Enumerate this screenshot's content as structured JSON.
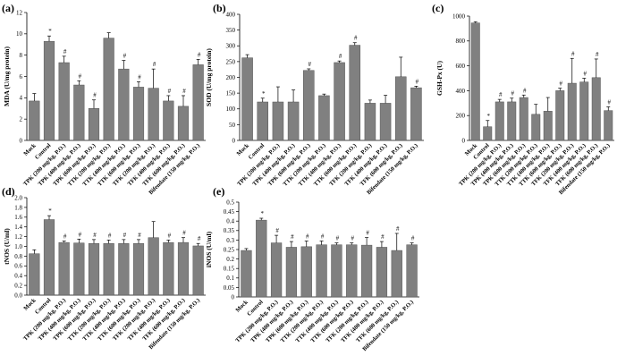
{
  "categories": [
    "Mock",
    "Control",
    "TPK (200 mg/kg, P.O.)",
    "TPK (400 mg/kg, P.O.)",
    "TPK (600 mg/kg, P.O.)",
    "TTK (200 mg/kg, P.O.)",
    "TTK (400 mg/kg, P.O.)",
    "TTK (600 mg/kg, P.O.)",
    "TFK (200 mg/kg, P.O.)",
    "TFK (400 mg/kg, P.O.)",
    "TFK (600 mg/kg, P.O.)",
    "Bifendate (150 mg/kg, P.O.)"
  ],
  "colors": {
    "bar": "#808080",
    "axis": "#000000",
    "error": "#000000"
  },
  "chart_data": [
    {
      "type": "bar",
      "panel_label": "(a)",
      "ylabel": "MDA (U/mg protein)",
      "ylim": [
        0,
        12
      ],
      "yticks": [
        0,
        2,
        4,
        6,
        8,
        10,
        12
      ],
      "tick_decimals": 0,
      "values": [
        3.7,
        9.3,
        7.3,
        5.2,
        3.0,
        9.6,
        6.7,
        5.0,
        4.9,
        3.7,
        3.2,
        7.1
      ],
      "errors": [
        0.7,
        0.5,
        0.6,
        0.4,
        0.8,
        0.5,
        0.8,
        0.5,
        1.8,
        0.5,
        1.0,
        0.5
      ],
      "marks": [
        "",
        "*",
        "#",
        "#",
        "#",
        "",
        "#",
        "#",
        "#",
        "#",
        "#",
        "#"
      ]
    },
    {
      "type": "bar",
      "panel_label": "(b)",
      "ylabel": "SOD (U/mg protein)",
      "ylim": [
        0,
        400
      ],
      "yticks": [
        0,
        50,
        100,
        150,
        200,
        250,
        300,
        350,
        400
      ],
      "tick_decimals": 0,
      "values": [
        262,
        122,
        122,
        122,
        222,
        142,
        247,
        302,
        118,
        118,
        202,
        167
      ],
      "errors": [
        10,
        12,
        48,
        38,
        5,
        5,
        5,
        8,
        10,
        25,
        62,
        5
      ],
      "marks": [
        "",
        "*",
        "",
        "",
        "#",
        "",
        "#",
        "#",
        "",
        "",
        "",
        "#"
      ]
    },
    {
      "type": "bar",
      "panel_label": "(c)",
      "ylabel": "GSH-Px (U)",
      "ylim": [
        0,
        1000
      ],
      "yticks": [
        0,
        200,
        400,
        600,
        800,
        1000
      ],
      "tick_decimals": 0,
      "values": [
        945,
        110,
        310,
        310,
        345,
        210,
        235,
        400,
        460,
        470,
        505,
        240
      ],
      "errors": [
        10,
        50,
        20,
        30,
        20,
        80,
        110,
        20,
        200,
        30,
        150,
        30
      ],
      "marks": [
        "",
        "*",
        "#",
        "#",
        "#",
        "",
        "",
        "#",
        "#",
        "#",
        "#",
        "#"
      ]
    },
    {
      "type": "bar",
      "panel_label": "(d)",
      "ylabel": "tNOS (U/ml)",
      "ylim": [
        0,
        2.0
      ],
      "yticks": [
        0,
        0.2,
        0.4,
        0.6,
        0.8,
        1.0,
        1.2,
        1.4,
        1.6,
        1.8,
        2.0
      ],
      "tick_decimals": 1,
      "values": [
        0.85,
        1.55,
        1.08,
        1.07,
        1.06,
        1.06,
        1.06,
        1.06,
        1.18,
        1.08,
        1.08,
        1.01
      ],
      "errors": [
        0.08,
        0.08,
        0.03,
        0.08,
        0.08,
        0.07,
        0.08,
        0.08,
        0.33,
        0.05,
        0.1,
        0.05
      ],
      "marks": [
        "",
        "*",
        "#",
        "#",
        "#",
        "#",
        "#",
        "#",
        "",
        "#",
        "#",
        "#"
      ]
    },
    {
      "type": "bar",
      "panel_label": "(e)",
      "ylabel": "iNOS (U/ml)",
      "ylim": [
        0,
        0.5
      ],
      "yticks": [
        0,
        0.05,
        0.1,
        0.15,
        0.2,
        0.25,
        0.3,
        0.35,
        0.4,
        0.45,
        0.5
      ],
      "tick_decimals": 2,
      "tick_labels": [
        "0",
        "0.05",
        "0.1",
        "0.15",
        "0.2",
        "0.25",
        "0.3",
        "0.35",
        "0.4",
        "0.45",
        "0.5"
      ],
      "values": [
        0.245,
        0.405,
        0.285,
        0.262,
        0.265,
        0.275,
        0.275,
        0.275,
        0.273,
        0.262,
        0.245,
        0.275
      ],
      "errors": [
        0.01,
        0.01,
        0.04,
        0.03,
        0.03,
        0.02,
        0.01,
        0.01,
        0.04,
        0.03,
        0.09,
        0.01
      ],
      "marks": [
        "",
        "*",
        "#",
        "#",
        "#",
        "#",
        "#",
        "#",
        "#",
        "#",
        "#",
        "#"
      ]
    }
  ]
}
